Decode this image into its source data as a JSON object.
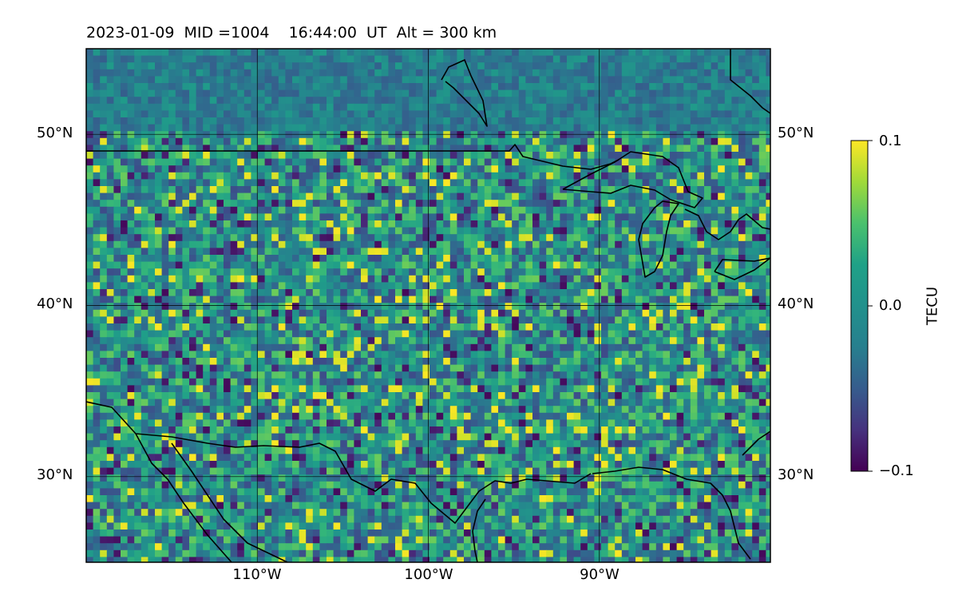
{
  "title": "2023-01-09  MID =1004    16:44:00  UT  Alt = 300 km",
  "map": {
    "lat_range": [
      25,
      55
    ],
    "lon_range": [
      -120,
      -80
    ],
    "gridlines": true,
    "lat_labels": [
      {
        "value": 50,
        "text": "50°N"
      },
      {
        "value": 40,
        "text": "40°N"
      },
      {
        "value": 30,
        "text": "30°N"
      }
    ],
    "lon_labels": [
      {
        "value": -110,
        "text": "110°W"
      },
      {
        "value": -100,
        "text": "100°W"
      },
      {
        "value": -90,
        "text": "90°W"
      }
    ],
    "features": [
      "coastlines",
      "national-borders",
      "great-lakes"
    ]
  },
  "colorbar": {
    "label": "TECU",
    "colormap": "viridis",
    "min": -0.1,
    "max": 0.1,
    "ticks": [
      {
        "value": 0.1,
        "text": "0.1"
      },
      {
        "value": 0.0,
        "text": "0.0"
      },
      {
        "value": -0.1,
        "text": "−0.1"
      }
    ]
  },
  "colors": {
    "viridis_low": "#440154",
    "viridis_mid": "#21918c",
    "viridis_high": "#fde725"
  }
}
